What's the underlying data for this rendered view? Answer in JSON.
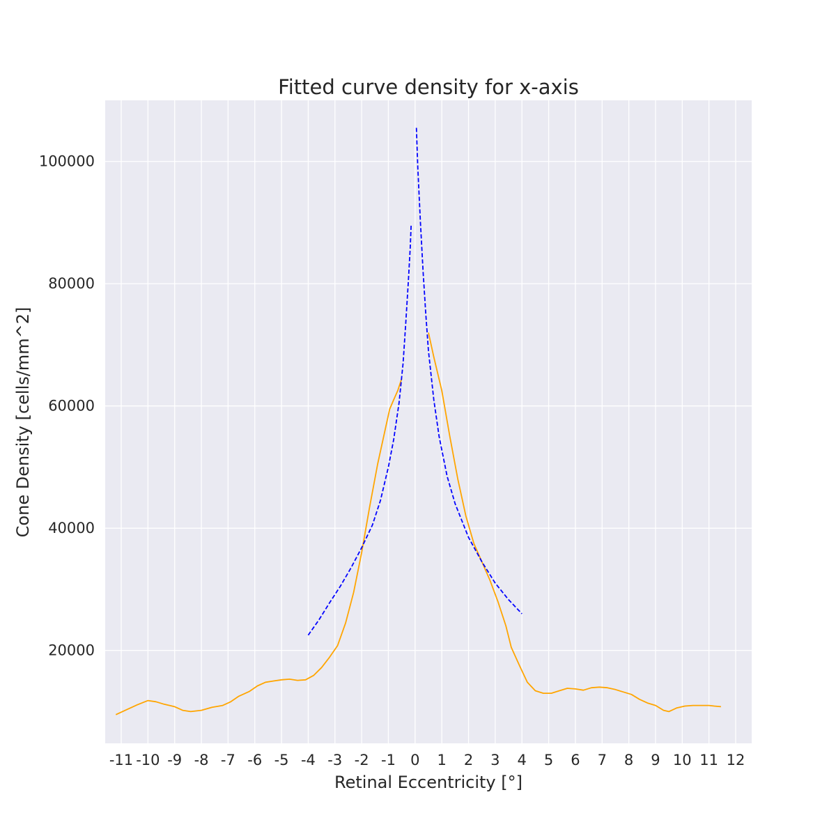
{
  "chart_data": {
    "type": "line",
    "title": "Fitted curve density for x-axis",
    "xlabel": "Retinal Eccentricity [°]",
    "ylabel": "Cone Density [cells/mm^2]",
    "xlim": [
      -11.6,
      12.6
    ],
    "ylim": [
      4800,
      110000
    ],
    "x_ticks": [
      -11,
      -10,
      -9,
      -8,
      -7,
      -6,
      -5,
      -4,
      -3,
      -2,
      -1,
      0,
      1,
      2,
      3,
      4,
      5,
      6,
      7,
      8,
      9,
      10,
      11,
      12
    ],
    "x_tick_labels": [
      "-11",
      "-10",
      "-9",
      "-8",
      "-7",
      "-6",
      "-5",
      "-4",
      "-3",
      "-2",
      "-1",
      "0",
      "1",
      "2",
      "3",
      "4",
      "5",
      "6",
      "7",
      "8",
      "9",
      "10",
      "11",
      "12"
    ],
    "y_ticks": [
      20000,
      40000,
      60000,
      80000,
      100000
    ],
    "y_tick_labels": [
      "20000",
      "40000",
      "60000",
      "80000",
      "100000"
    ],
    "grid": true,
    "background": "#eaeaf2",
    "series": [
      {
        "color": "#ffa500",
        "style": "solid",
        "segments": [
          [
            [
              -11.2,
              9500
            ],
            [
              -10.8,
              10300
            ],
            [
              -10.4,
              11100
            ],
            [
              -10.0,
              11800
            ],
            [
              -9.7,
              11600
            ],
            [
              -9.4,
              11200
            ],
            [
              -9.0,
              10800
            ],
            [
              -8.7,
              10200
            ],
            [
              -8.4,
              10000
            ],
            [
              -8.0,
              10200
            ],
            [
              -7.6,
              10700
            ],
            [
              -7.2,
              11000
            ],
            [
              -6.9,
              11600
            ],
            [
              -6.6,
              12500
            ],
            [
              -6.2,
              13300
            ],
            [
              -5.9,
              14200
            ],
            [
              -5.6,
              14800
            ],
            [
              -5.3,
              15000
            ],
            [
              -5.0,
              15200
            ],
            [
              -4.7,
              15300
            ],
            [
              -4.4,
              15100
            ],
            [
              -4.1,
              15200
            ],
            [
              -3.8,
              15900
            ],
            [
              -3.5,
              17200
            ],
            [
              -3.2,
              18900
            ],
            [
              -2.9,
              20800
            ],
            [
              -2.6,
              24500
            ],
            [
              -2.3,
              29500
            ],
            [
              -2.0,
              36000
            ],
            [
              -1.7,
              43500
            ],
            [
              -1.4,
              50500
            ],
            [
              -1.1,
              56500
            ],
            [
              -0.95,
              59500
            ],
            [
              -0.8,
              61000
            ],
            [
              -0.65,
              62500
            ],
            [
              -0.5,
              64500
            ]
          ],
          [
            [
              0.5,
              72000
            ],
            [
              0.7,
              68000
            ],
            [
              1.0,
              62500
            ],
            [
              1.3,
              55000
            ],
            [
              1.6,
              48000
            ],
            [
              1.9,
              42000
            ],
            [
              2.2,
              37500
            ],
            [
              2.5,
              34500
            ],
            [
              2.8,
              31500
            ],
            [
              3.1,
              28000
            ],
            [
              3.4,
              24000
            ],
            [
              3.6,
              20500
            ],
            [
              3.9,
              17600
            ],
            [
              4.2,
              14800
            ],
            [
              4.5,
              13400
            ],
            [
              4.8,
              13000
            ],
            [
              5.1,
              13000
            ],
            [
              5.4,
              13400
            ],
            [
              5.7,
              13800
            ],
            [
              6.0,
              13700
            ],
            [
              6.3,
              13500
            ],
            [
              6.6,
              13900
            ],
            [
              6.9,
              14000
            ],
            [
              7.2,
              13900
            ],
            [
              7.5,
              13600
            ],
            [
              7.8,
              13200
            ],
            [
              8.1,
              12800
            ],
            [
              8.4,
              12000
            ],
            [
              8.7,
              11400
            ],
            [
              9.0,
              11000
            ],
            [
              9.3,
              10200
            ],
            [
              9.5,
              10000
            ],
            [
              9.8,
              10600
            ],
            [
              10.1,
              10900
            ],
            [
              10.4,
              11000
            ],
            [
              10.7,
              11000
            ],
            [
              11.0,
              11000
            ],
            [
              11.2,
              10900
            ],
            [
              11.45,
              10800
            ]
          ]
        ]
      },
      {
        "color": "#0000ff",
        "style": "dashed",
        "segments": [
          [
            [
              -4.0,
              22500
            ],
            [
              -3.6,
              25000
            ],
            [
              -3.2,
              27800
            ],
            [
              -2.8,
              30500
            ],
            [
              -2.4,
              33500
            ],
            [
              -2.0,
              36800
            ],
            [
              -1.6,
              40500
            ],
            [
              -1.3,
              44500
            ],
            [
              -1.0,
              50000
            ],
            [
              -0.8,
              54500
            ],
            [
              -0.6,
              60500
            ],
            [
              -0.45,
              67000
            ],
            [
              -0.35,
              73500
            ],
            [
              -0.25,
              80500
            ],
            [
              -0.18,
              86000
            ],
            [
              -0.15,
              89500
            ]
          ],
          [
            [
              0.05,
              105500
            ],
            [
              0.1,
              99000
            ],
            [
              0.2,
              90000
            ],
            [
              0.3,
              82000
            ],
            [
              0.4,
              75000
            ],
            [
              0.5,
              69000
            ],
            [
              0.7,
              61000
            ],
            [
              0.9,
              55000
            ],
            [
              1.2,
              48500
            ],
            [
              1.5,
              44000
            ],
            [
              2.0,
              38500
            ],
            [
              2.5,
              34500
            ],
            [
              3.0,
              31000
            ],
            [
              3.5,
              28300
            ],
            [
              4.0,
              26000
            ]
          ]
        ]
      }
    ]
  }
}
